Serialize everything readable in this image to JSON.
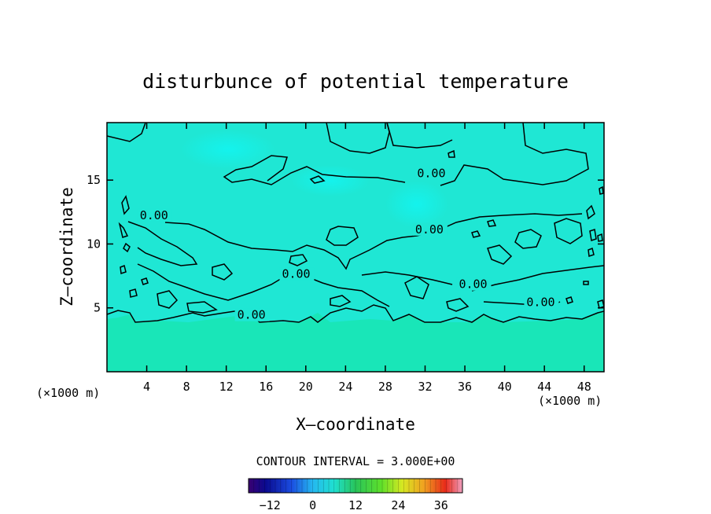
{
  "chart_data": {
    "type": "contour",
    "title": "disturbunce of potential temperature",
    "xlabel": "X–coordinate",
    "ylabel": "Z–coordinate",
    "x_unit": "(×1000 m)",
    "y_unit": "(×1000 m)",
    "xlim": [
      0,
      50
    ],
    "ylim": [
      0,
      19.5
    ],
    "x_ticks": [
      4,
      8,
      12,
      16,
      20,
      24,
      28,
      32,
      36,
      40,
      44,
      48
    ],
    "y_ticks": [
      5,
      10,
      15
    ],
    "contour_interval_text": "CONTOUR INTERVAL = 3.000E+00",
    "contour_labels": [
      {
        "text": "0.00",
        "x": 3.3,
        "z": 12.0
      },
      {
        "text": "0.00",
        "x": 31.2,
        "z": 15.3
      },
      {
        "text": "0.00",
        "x": 31.0,
        "z": 10.9
      },
      {
        "text": "0.00",
        "x": 17.6,
        "z": 7.4
      },
      {
        "text": "0.00",
        "x": 35.4,
        "z": 6.6
      },
      {
        "text": "0.00",
        "x": 42.2,
        "z": 5.2
      },
      {
        "text": "0.00",
        "x": 13.1,
        "z": 4.2
      }
    ],
    "colorbar": {
      "min": -18,
      "max": 42,
      "ticks": [
        -12,
        0,
        12,
        24,
        36
      ],
      "tick_labels": [
        "−12",
        "0",
        "12",
        "24",
        "36"
      ]
    },
    "field_colors": {
      "upper_region": "#1fe7d4",
      "upper_highlight": "#12f4f0",
      "lower_region": "#19e6b8",
      "contour_line": "#000000"
    }
  }
}
